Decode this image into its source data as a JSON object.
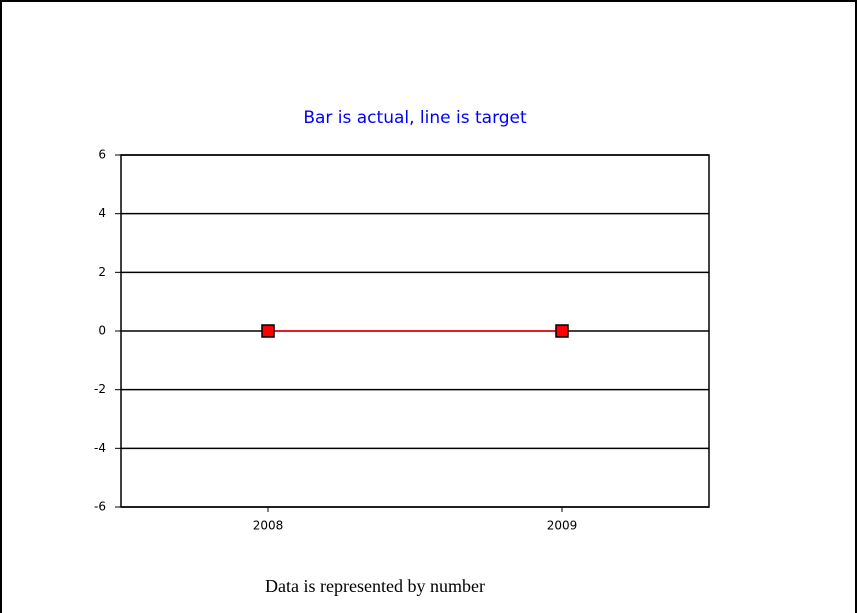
{
  "chart_data": {
    "type": "line",
    "title": "Bar is actual, line is target",
    "categories": [
      "2008",
      "2009"
    ],
    "series": [
      {
        "color": "#ff0000",
        "values": [
          0,
          0
        ]
      }
    ],
    "ylim": [
      -6,
      6
    ],
    "yticks": [
      -6,
      -4,
      -2,
      0,
      2,
      4,
      6
    ],
    "grid": true,
    "caption": "Data is represented by number"
  }
}
